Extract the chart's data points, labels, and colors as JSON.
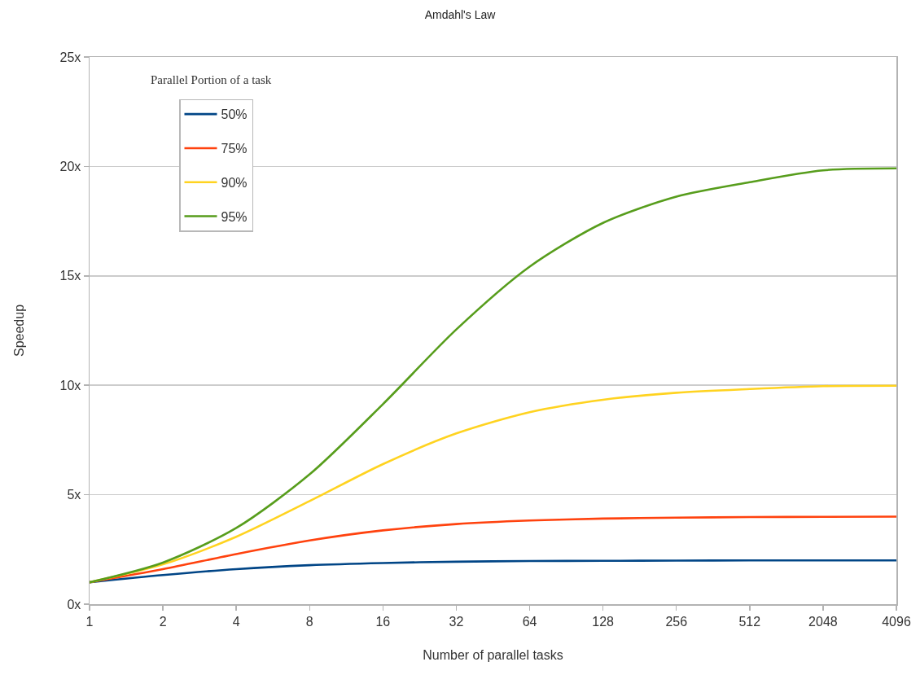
{
  "chart_data": {
    "type": "line",
    "title": "Amdahl's Law",
    "xlabel": "Number of parallel tasks",
    "ylabel": "Speedup",
    "legend_title": "Parallel Portion of a task",
    "categories": [
      "1",
      "2",
      "4",
      "8",
      "16",
      "32",
      "64",
      "128",
      "256",
      "512",
      "2048",
      "4096"
    ],
    "series": [
      {
        "name": "50%",
        "color": "#004586",
        "values": [
          1.0,
          1.33,
          1.6,
          1.78,
          1.88,
          1.94,
          1.97,
          1.98,
          1.99,
          2.0,
          2.0,
          2.0
        ]
      },
      {
        "name": "75%",
        "color": "#ff420e",
        "values": [
          1.0,
          1.6,
          2.29,
          2.91,
          3.37,
          3.66,
          3.82,
          3.91,
          3.95,
          3.98,
          3.99,
          4.0
        ]
      },
      {
        "name": "90%",
        "color": "#ffd320",
        "values": [
          1.0,
          1.82,
          3.08,
          4.71,
          6.4,
          7.8,
          8.77,
          9.34,
          9.66,
          9.83,
          9.96,
          9.98
        ]
      },
      {
        "name": "95%",
        "color": "#579d1c",
        "values": [
          1.0,
          1.9,
          3.48,
          5.93,
          9.14,
          12.55,
          15.42,
          17.42,
          18.62,
          19.28,
          19.82,
          19.91
        ]
      }
    ],
    "ylim": [
      0,
      25
    ],
    "yticks": [
      {
        "value": 0,
        "label": "0x"
      },
      {
        "value": 5,
        "label": "5x"
      },
      {
        "value": 10,
        "label": "10x"
      },
      {
        "value": 15,
        "label": "15x"
      },
      {
        "value": 20,
        "label": "20x"
      },
      {
        "value": 25,
        "label": "25x"
      }
    ],
    "grid": "y",
    "legend": "top left",
    "marker": "none",
    "line_style": "solid"
  }
}
